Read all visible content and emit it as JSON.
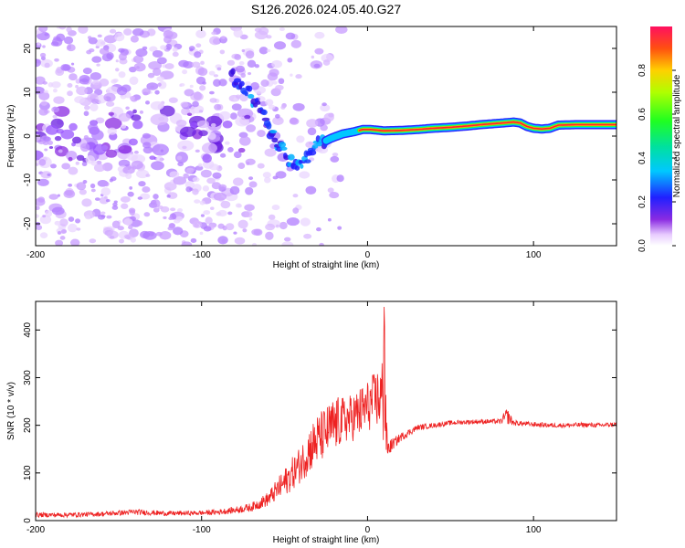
{
  "title": "S126.2026.024.05.40.G27",
  "chart_data": [
    {
      "type": "heatmap",
      "title": "S126.2026.024.05.40.G27",
      "xlabel": "Height of straight line (km)",
      "ylabel": "Frequency (Hz)",
      "xlim": [
        -200,
        150
      ],
      "ylim": [
        -25,
        25
      ],
      "xticks": [
        -200,
        -100,
        0,
        100
      ],
      "xtick_labels": [
        "-200",
        "-100",
        "0",
        "100"
      ],
      "yticks": [
        -20,
        -10,
        0,
        10,
        20
      ],
      "ytick_labels": [
        "-20",
        "-10",
        "0",
        "10",
        "20"
      ],
      "ridge": {
        "name": "dominant frequency track",
        "x": [
          -82,
          -75,
          -68,
          -62,
          -57,
          -52,
          -47,
          -42,
          -37,
          -30,
          -22,
          -15,
          -8,
          -3,
          2,
          10,
          20,
          30,
          40,
          50,
          60,
          68,
          75,
          82,
          88,
          92,
          96,
          100,
          105,
          110,
          115,
          125,
          135,
          150
        ],
        "y": [
          14,
          11,
          8,
          4,
          0,
          -3,
          -6,
          -7,
          -5,
          -2,
          -0.5,
          0.5,
          1,
          1.5,
          1.5,
          1.2,
          1.3,
          1.5,
          1.8,
          2.0,
          2.3,
          2.6,
          2.8,
          3.0,
          3.2,
          3.0,
          2.2,
          1.8,
          1.6,
          1.8,
          2.5,
          2.6,
          2.6,
          2.6
        ]
      },
      "colorbar": {
        "label": "Normalized spectral amplitude",
        "ticks": [
          0.0,
          0.2,
          0.4,
          0.6,
          0.8
        ],
        "tick_labels": [
          "0.0",
          "0.2",
          "0.4",
          "0.6",
          "0.8"
        ],
        "range": [
          0,
          1
        ]
      }
    },
    {
      "type": "line",
      "xlabel": "Height of straight line (km)",
      "ylabel": "SNR (10 * v/v)",
      "xlim": [
        -200,
        150
      ],
      "ylim": [
        0,
        460
      ],
      "xticks": [
        -200,
        -100,
        0,
        100
      ],
      "xtick_labels": [
        "-200",
        "-100",
        "0",
        "100"
      ],
      "yticks": [
        0,
        100,
        200,
        300,
        400
      ],
      "ytick_labels": [
        "0",
        "100",
        "200",
        "300",
        "400"
      ],
      "series": [
        {
          "name": "SNR",
          "color": "#ee2222",
          "x": [
            -200,
            -180,
            -160,
            -140,
            -120,
            -100,
            -90,
            -80,
            -70,
            -60,
            -50,
            -45,
            -40,
            -35,
            -30,
            -25,
            -20,
            -15,
            -10,
            -5,
            0,
            5,
            8,
            10,
            12,
            15,
            20,
            25,
            30,
            40,
            50,
            60,
            70,
            80,
            84,
            88,
            95,
            100,
            110,
            120,
            130,
            140,
            150
          ],
          "values": [
            12,
            12,
            14,
            18,
            15,
            16,
            18,
            22,
            28,
            45,
            80,
            100,
            120,
            150,
            170,
            185,
            200,
            210,
            215,
            225,
            240,
            255,
            260,
            250,
            150,
            160,
            175,
            185,
            195,
            200,
            205,
            207,
            208,
            208,
            220,
            205,
            203,
            202,
            200,
            200,
            201,
            200,
            202
          ],
          "noise_amplitude": [
            10,
            10,
            10,
            12,
            10,
            10,
            12,
            14,
            18,
            30,
            60,
            70,
            80,
            100,
            110,
            110,
            120,
            100,
            100,
            110,
            110,
            120,
            150,
            220,
            40,
            25,
            18,
            15,
            12,
            10,
            10,
            10,
            10,
            10,
            35,
            12,
            10,
            10,
            10,
            10,
            10,
            10,
            10
          ]
        }
      ]
    }
  ]
}
